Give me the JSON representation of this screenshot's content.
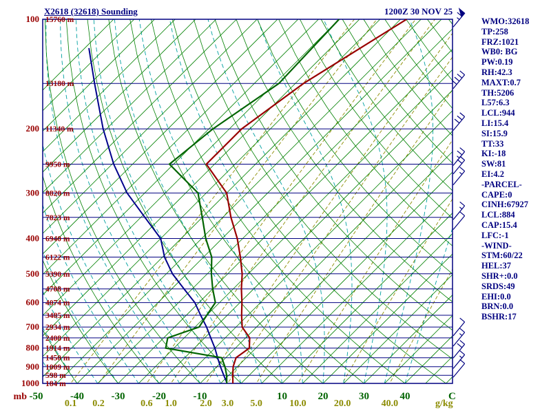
{
  "header": {
    "title": "X2618 (32618) Sounding",
    "datetime": "1200Z 30 NOV 25"
  },
  "indices_panel": {
    "lines": [
      "WMO:32618",
      "TP:258",
      "FRZ:1021",
      "WB0: BG",
      "PW:0.19",
      "RH:42.3",
      "MAXT:0.7",
      "TH:5206",
      "L57:6.3",
      "LCL:944",
      "LI:15.4",
      "SI:15.9",
      "TT:33",
      "KI:-18",
      "SW:81",
      "EI:4.2",
      "-PARCEL-",
      "CAPE:0",
      "CINH:67927",
      "LCL:884",
      "CAP:15.4",
      "LFC:-1",
      "-WIND-",
      "STM:60/22",
      "HEL:37",
      "SHR+:0.0",
      "SRDS:49",
      "EHI:0.0",
      "BRN:0.0",
      "BSHR:17"
    ]
  },
  "chart_data": {
    "type": "skewt_log_p",
    "title": "X2618 (32618) Sounding",
    "valid_time": "1200Z 30 NOV 25",
    "pressure_unit": "mb",
    "temp_unit": "C",
    "mixing_unit": "g/kg",
    "pressure_axis_ticks": [
      100,
      200,
      300,
      400,
      500,
      600,
      700,
      800,
      900,
      1000
    ],
    "pressure_lines": [
      100,
      150,
      200,
      250,
      300,
      350,
      400,
      450,
      500,
      550,
      600,
      650,
      700,
      750,
      800,
      850,
      900,
      950,
      1000
    ],
    "height_labels": [
      {
        "p": 100,
        "label": "15760 m"
      },
      {
        "p": 150,
        "label": "13180 m"
      },
      {
        "p": 200,
        "label": "11340 m"
      },
      {
        "p": 250,
        "label": "9950 m"
      },
      {
        "p": 300,
        "label": "8820 m"
      },
      {
        "p": 350,
        "label": "7823 m"
      },
      {
        "p": 400,
        "label": "6940 m"
      },
      {
        "p": 450,
        "label": "6122 m"
      },
      {
        "p": 500,
        "label": "5390 m"
      },
      {
        "p": 550,
        "label": "4708 m"
      },
      {
        "p": 600,
        "label": "4074 m"
      },
      {
        "p": 650,
        "label": "3485 m"
      },
      {
        "p": 700,
        "label": "2934 m"
      },
      {
        "p": 750,
        "label": "2408 m"
      },
      {
        "p": 800,
        "label": "1914 m"
      },
      {
        "p": 850,
        "label": "1450 m"
      },
      {
        "p": 900,
        "label": "1009 m"
      },
      {
        "p": 950,
        "label": "598 m"
      },
      {
        "p": 1000,
        "label": "184 m"
      }
    ],
    "temp_axis_ticks": [
      -50,
      -40,
      -30,
      -20,
      -10,
      10,
      20,
      30,
      40
    ],
    "mixing_ratio_lines": [
      0.1,
      0.2,
      0.6,
      1.0,
      2.0,
      3.0,
      5.0,
      10.0,
      20.0,
      40.0
    ],
    "mixing_ratio_labels": [
      "0.1",
      "0.2",
      "0.6",
      "1.0",
      "2.0",
      "3.0",
      "5.0",
      "10.0",
      "20.0",
      "40.0"
    ],
    "isotherm_step_c": 5,
    "dry_adiabat_step_c": 10,
    "moist_adiabat_step_c": 5,
    "series": {
      "temperature": [
        [
          1000,
          -2
        ],
        [
          950,
          -4
        ],
        [
          900,
          -6
        ],
        [
          850,
          -7.5
        ],
        [
          800,
          -6.6
        ],
        [
          750,
          -9
        ],
        [
          700,
          -13.5
        ],
        [
          650,
          -16.5
        ],
        [
          600,
          -19.5
        ],
        [
          550,
          -23
        ],
        [
          500,
          -26.5
        ],
        [
          450,
          -31
        ],
        [
          400,
          -36.3
        ],
        [
          350,
          -43
        ],
        [
          300,
          -50
        ],
        [
          250,
          -62
        ],
        [
          200,
          -62
        ],
        [
          150,
          -58
        ],
        [
          100,
          -48.5
        ]
      ],
      "dewpoint": [
        [
          1000,
          -3.5
        ],
        [
          950,
          -5.5
        ],
        [
          900,
          -8
        ],
        [
          850,
          -11
        ],
        [
          800,
          -27
        ],
        [
          750,
          -29
        ],
        [
          700,
          -24
        ],
        [
          650,
          -25
        ],
        [
          600,
          -26
        ],
        [
          550,
          -30
        ],
        [
          500,
          -34
        ],
        [
          450,
          -38
        ],
        [
          400,
          -44
        ],
        [
          350,
          -50
        ],
        [
          300,
          -57
        ],
        [
          250,
          -71
        ],
        [
          200,
          -69
        ],
        [
          150,
          -64
        ],
        [
          100,
          -65
        ]
      ],
      "wetbulb": [
        [
          1000,
          -3.4
        ],
        [
          950,
          -6.2
        ],
        [
          900,
          -9.1
        ],
        [
          850,
          -12
        ],
        [
          800,
          -15
        ],
        [
          750,
          -18.5
        ],
        [
          700,
          -22.2
        ],
        [
          650,
          -26.5
        ],
        [
          600,
          -31
        ],
        [
          550,
          -37
        ],
        [
          500,
          -43.5
        ],
        [
          450,
          -49.5
        ],
        [
          400,
          -55
        ],
        [
          350,
          -64
        ],
        [
          300,
          -74.3
        ],
        [
          250,
          -84.6
        ],
        [
          200,
          -95.8
        ],
        [
          150,
          -109
        ],
        [
          120,
          -119
        ]
      ]
    },
    "winds": [
      {
        "p": 105,
        "speed_kt": 65
      },
      {
        "p": 155,
        "speed_kt": 40
      },
      {
        "p": 202,
        "speed_kt": 30
      },
      {
        "p": 252,
        "speed_kt": 25
      },
      {
        "p": 266,
        "speed_kt": 20
      },
      {
        "p": 285,
        "speed_kt": 15
      },
      {
        "p": 355,
        "speed_kt": 15
      },
      {
        "p": 378,
        "speed_kt": 10
      },
      {
        "p": 740,
        "speed_kt": 10
      },
      {
        "p": 790,
        "speed_kt": 15
      },
      {
        "p": 852,
        "speed_kt": 20
      },
      {
        "p": 910,
        "speed_kt": 15
      },
      {
        "p": 962,
        "speed_kt": 10
      }
    ],
    "colors": {
      "background": "#ffffff",
      "title_text": "#000080",
      "panel_text": "#000080",
      "pressure_text": "#990000",
      "height_text": "#990000",
      "temp_axis_text": "#006400",
      "mixing_text": "#8b8b00",
      "isotherm": "#008000",
      "dry_adiabat": "#008000",
      "moist_adiabat": "#00a0a0",
      "mixing_line": "#8b8b00",
      "pressure_line": "#000080",
      "border": "#000080",
      "temperature_trace": "#990000",
      "dewpoint_trace": "#006400",
      "wetbulb_trace": "#00008b",
      "wind_barb": "#000080"
    }
  }
}
